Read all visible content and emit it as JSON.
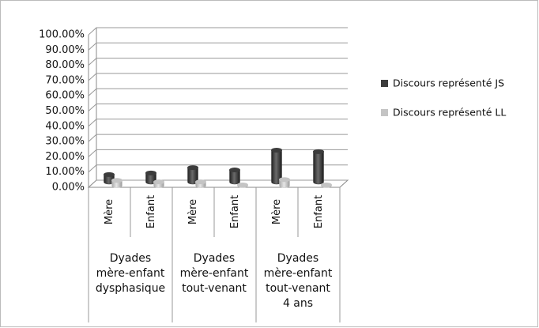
{
  "chart_data": {
    "type": "bar3d",
    "categories": [
      "Mère",
      "Enfant",
      "Mère",
      "Enfant",
      "Mère",
      "Enfant"
    ],
    "groups": [
      {
        "label": [
          "Dyades",
          "mère-enfant",
          "dysphasique"
        ]
      },
      {
        "label": [
          "Dyades",
          "mère-enfant",
          "tout-venant"
        ]
      },
      {
        "label": [
          "Dyades",
          "mère-enfant",
          "tout-venant",
          "4 ans"
        ]
      }
    ],
    "series": [
      {
        "name": "Discours représenté JS",
        "color": "#3c3c3c",
        "values": [
          5,
          6,
          9.5,
          8,
          21,
          20
        ]
      },
      {
        "name": "Discours représenté LL",
        "color": "#c4c4c4",
        "values": [
          3.5,
          2.5,
          2.5,
          0.5,
          4,
          0.5
        ]
      }
    ],
    "ylim": [
      0,
      100
    ],
    "yticks": [
      {
        "value": 0,
        "label": "0.00%"
      },
      {
        "value": 10,
        "label": "10.00%"
      },
      {
        "value": 20,
        "label": "20.00%"
      },
      {
        "value": 30,
        "label": "30.00%"
      },
      {
        "value": 40,
        "label": "40.00%"
      },
      {
        "value": 50,
        "label": "50.00%"
      },
      {
        "value": 60,
        "label": "60.00%"
      },
      {
        "value": 70,
        "label": "70.00%"
      },
      {
        "value": 80,
        "label": "80.00%"
      },
      {
        "value": 90,
        "label": "90.00%"
      },
      {
        "value": 100,
        "label": "100.00%"
      }
    ],
    "grid": true,
    "legend": "right"
  }
}
